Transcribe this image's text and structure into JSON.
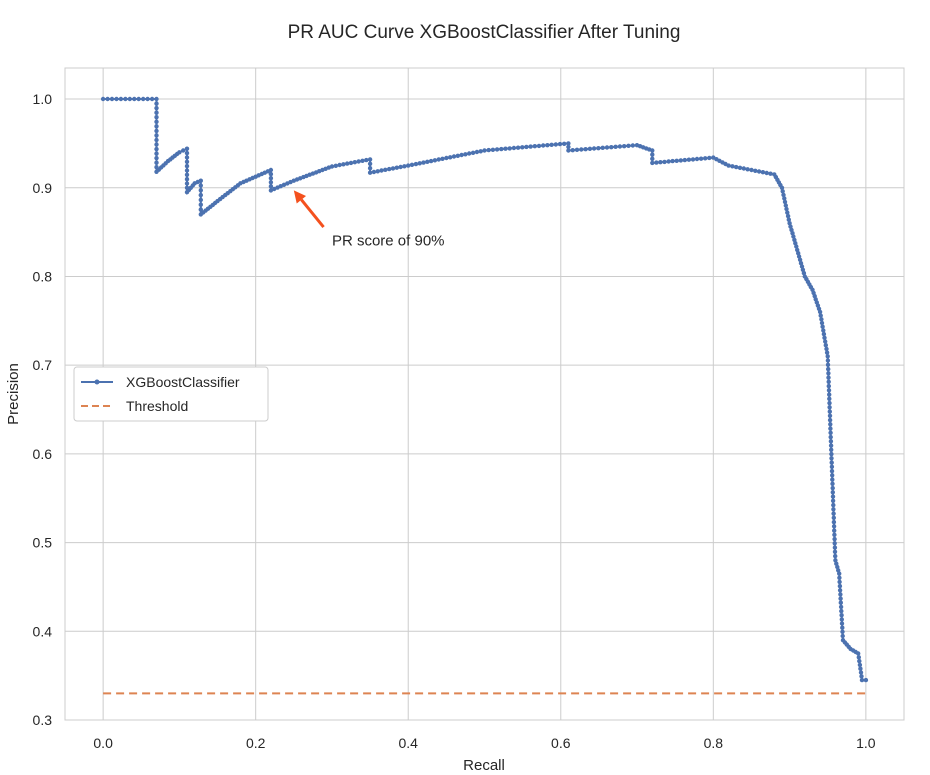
{
  "chart_data": {
    "type": "line",
    "title": "PR AUC Curve XGBoostClassifier After Tuning",
    "xlabel": "Recall",
    "ylabel": "Precision",
    "xlim": [
      -0.05,
      1.05
    ],
    "ylim": [
      0.3,
      1.035
    ],
    "xticks": [
      0.0,
      0.2,
      0.4,
      0.6,
      0.8,
      1.0
    ],
    "xtick_labels": [
      "0.0",
      "0.2",
      "0.4",
      "0.6",
      "0.8",
      "1.0"
    ],
    "yticks": [
      0.3,
      0.4,
      0.5,
      0.6,
      0.7,
      0.8,
      0.9,
      1.0
    ],
    "ytick_labels": [
      "0.3",
      "0.4",
      "0.5",
      "0.6",
      "0.7",
      "0.8",
      "0.9",
      "1.0"
    ],
    "grid": true,
    "legend_position": "center-left",
    "series": [
      {
        "name": "XGBoostClassifier",
        "color": "#4c72b0",
        "style": "solid-with-markers",
        "x": [
          0.0,
          0.07,
          0.07,
          0.085,
          0.1,
          0.11,
          0.11,
          0.12,
          0.128,
          0.128,
          0.15,
          0.18,
          0.22,
          0.22,
          0.25,
          0.3,
          0.35,
          0.35,
          0.4,
          0.5,
          0.61,
          0.61,
          0.7,
          0.72,
          0.72,
          0.8,
          0.82,
          0.85,
          0.88,
          0.89,
          0.9,
          0.91,
          0.92,
          0.93,
          0.94,
          0.95,
          0.955,
          0.96,
          0.965,
          0.97,
          0.975,
          0.98,
          0.99,
          0.995,
          1.0
        ],
        "y": [
          1.0,
          1.0,
          0.918,
          0.93,
          0.94,
          0.944,
          0.895,
          0.905,
          0.908,
          0.87,
          0.885,
          0.905,
          0.92,
          0.897,
          0.908,
          0.924,
          0.932,
          0.917,
          0.925,
          0.942,
          0.95,
          0.942,
          0.948,
          0.942,
          0.928,
          0.934,
          0.925,
          0.92,
          0.915,
          0.9,
          0.86,
          0.83,
          0.8,
          0.785,
          0.76,
          0.71,
          0.595,
          0.48,
          0.465,
          0.39,
          0.385,
          0.38,
          0.375,
          0.345,
          0.345
        ]
      },
      {
        "name": "Threshold",
        "color": "#dd8452",
        "style": "dashed",
        "x": [
          0.0,
          1.0
        ],
        "y": [
          0.33,
          0.33
        ]
      }
    ],
    "annotations": [
      {
        "text": "PR score of 90%",
        "arrow_to": [
          0.25,
          0.897
        ],
        "text_at": [
          0.3,
          0.835
        ],
        "color": "#f4511e"
      }
    ]
  }
}
